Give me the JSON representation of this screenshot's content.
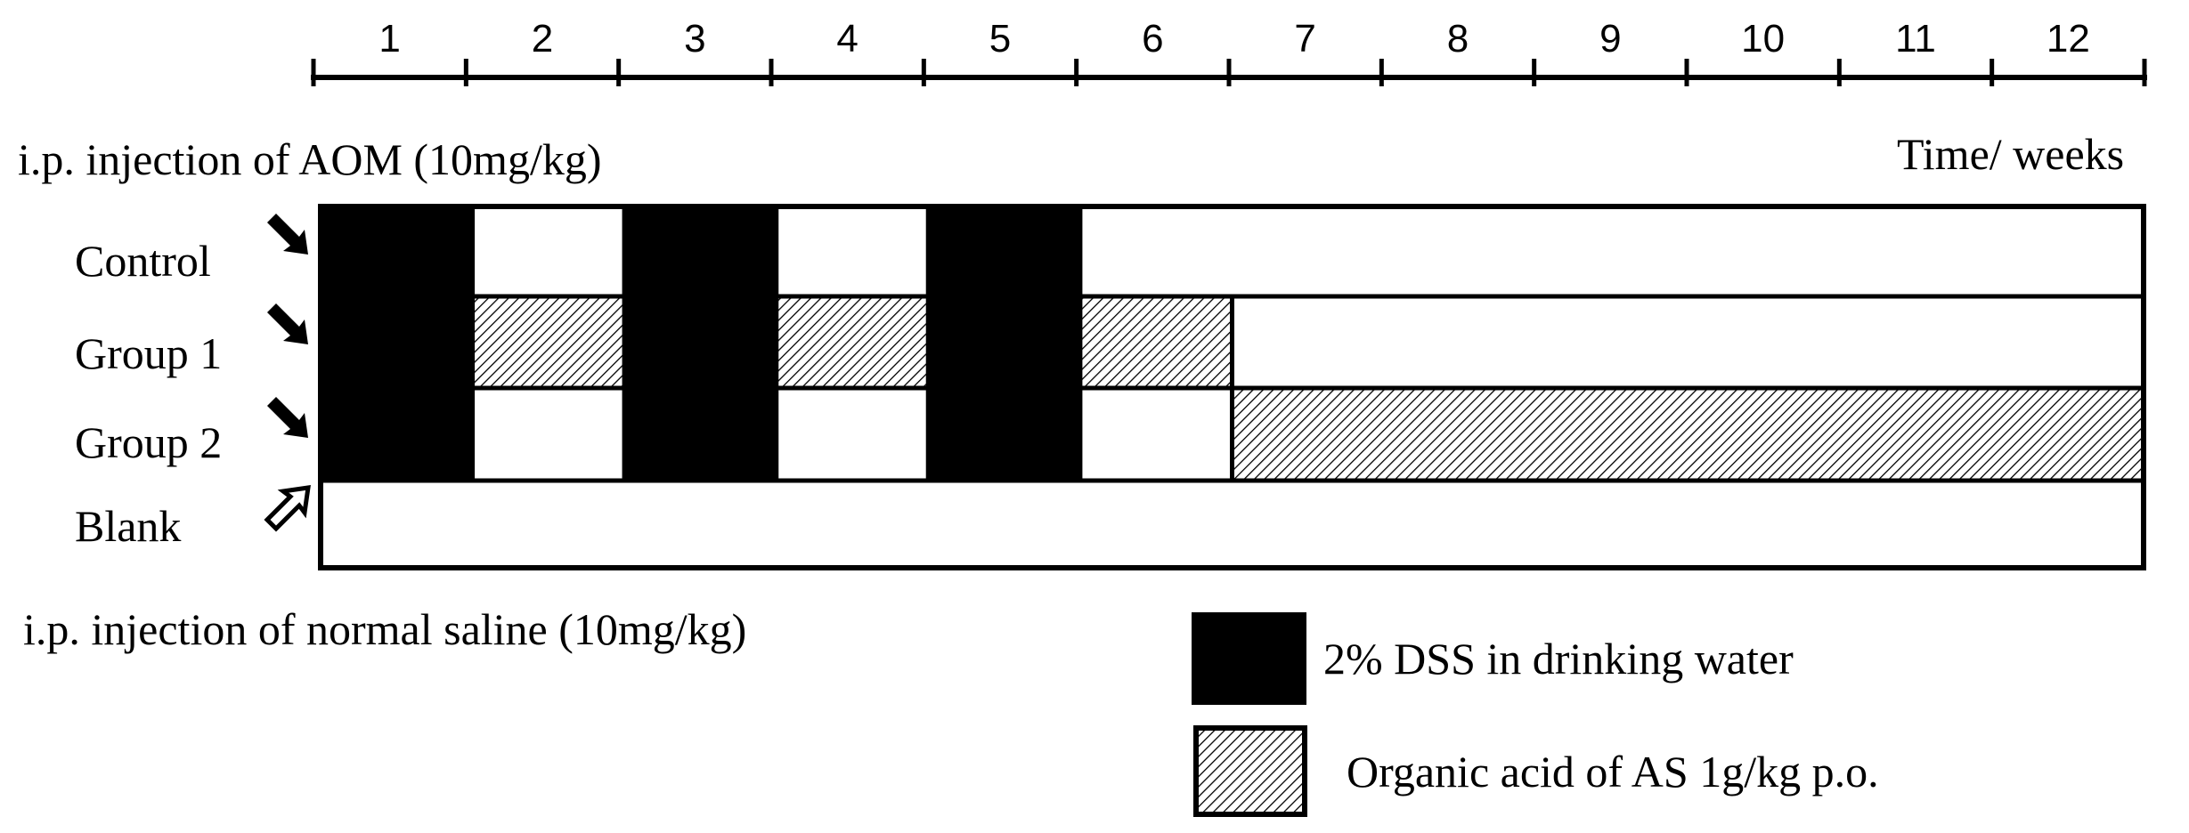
{
  "timeline": {
    "weeks": [
      "1",
      "2",
      "3",
      "4",
      "5",
      "6",
      "7",
      "8",
      "9",
      "10",
      "11",
      "12"
    ],
    "unit_label": "Time/ weeks"
  },
  "labels": {
    "top_injection": "i.p. injection of AOM (10mg/kg)",
    "bottom_injection": "i.p. injection of normal saline (10mg/kg)"
  },
  "groups": [
    {
      "name": "Control",
      "marker": "black-arrow",
      "segments": [
        "dss",
        "empty",
        "dss",
        "empty",
        "dss",
        "empty",
        "empty",
        "empty",
        "empty",
        "empty",
        "empty",
        "empty"
      ]
    },
    {
      "name": "Group 1",
      "marker": "black-arrow",
      "segments": [
        "dss",
        "acid",
        "dss",
        "acid",
        "dss",
        "acid",
        "empty",
        "empty",
        "empty",
        "empty",
        "empty",
        "empty"
      ]
    },
    {
      "name": "Group 2",
      "marker": "black-arrow",
      "segments": [
        "dss",
        "empty",
        "dss",
        "empty",
        "dss",
        "empty",
        "acid",
        "acid",
        "acid",
        "acid",
        "acid",
        "acid"
      ]
    },
    {
      "name": "Blank",
      "marker": "hollow-arrow",
      "segments": [
        "empty",
        "empty",
        "empty",
        "empty",
        "empty",
        "empty",
        "empty",
        "empty",
        "empty",
        "empty",
        "empty",
        "empty"
      ]
    }
  ],
  "legend": [
    {
      "key": "dss",
      "label": "2% DSS in drinking water"
    },
    {
      "key": "acid",
      "label": "Organic acid of AS 1g/kg  p.o."
    }
  ],
  "colors": {
    "dss": "#000000",
    "acid": "hatched",
    "empty": "#ffffff"
  }
}
